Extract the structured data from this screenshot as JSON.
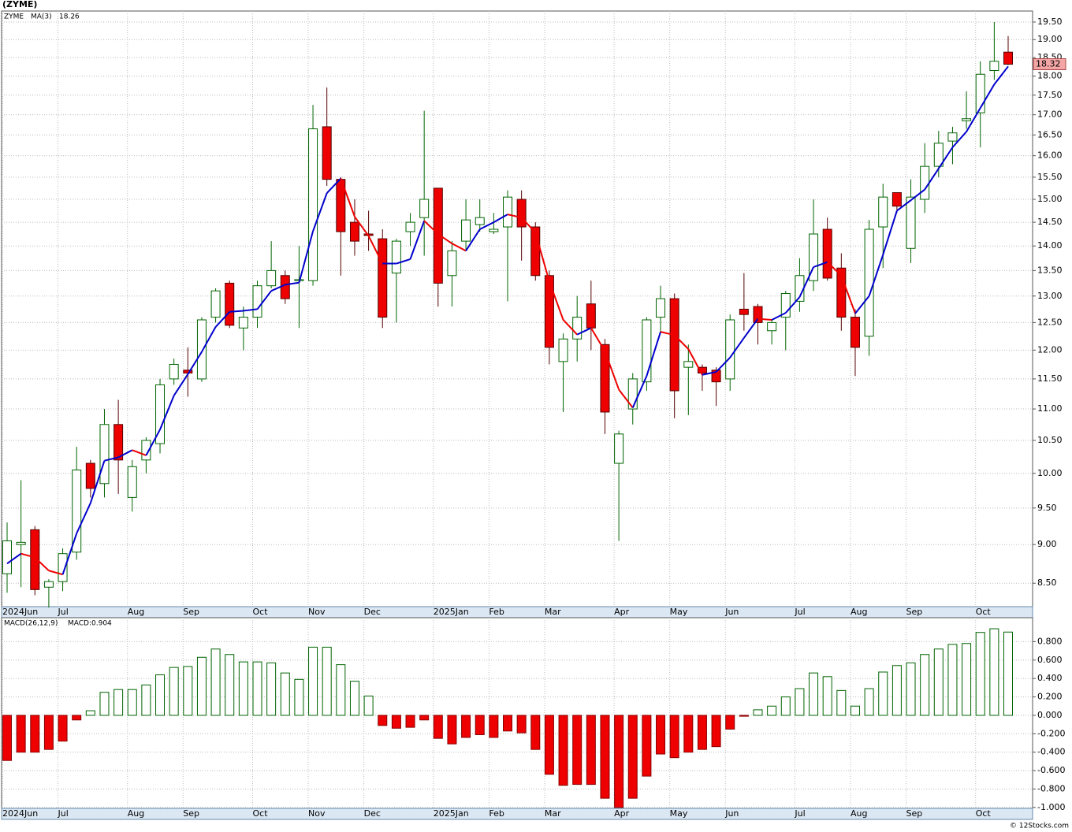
{
  "chart_data": [
    {
      "type": "candlestick",
      "title": "(ZYME)",
      "log_scale": true,
      "grid": true,
      "series_name": "ZYME",
      "series_name_color": "#008000",
      "up_fill": "#ffffff",
      "up_stroke": "#006400",
      "down_fill": "#ee0000",
      "down_stroke": "#550000",
      "last_price_label": "18.32",
      "last_price_fill": "#f4a6a6",
      "categories": [
        "2024Jun",
        null,
        null,
        null,
        "Jul",
        null,
        null,
        null,
        null,
        "Aug",
        null,
        null,
        null,
        "Sep",
        null,
        null,
        null,
        null,
        "Oct",
        null,
        null,
        null,
        "Nov",
        null,
        null,
        null,
        "Dec",
        null,
        null,
        null,
        null,
        "2025Jan",
        null,
        null,
        null,
        "Feb",
        null,
        null,
        null,
        "Mar",
        null,
        null,
        null,
        null,
        "Apr",
        null,
        null,
        null,
        "May",
        null,
        null,
        null,
        "Jun",
        null,
        null,
        null,
        null,
        "Jul",
        null,
        null,
        null,
        "Aug",
        null,
        null,
        null,
        "Sep",
        null,
        null,
        null,
        null,
        "Oct",
        null,
        null
      ],
      "open": [
        8.62,
        9.0,
        9.2,
        8.45,
        8.52,
        8.9,
        10.15,
        9.85,
        10.75,
        9.65,
        10.2,
        10.45,
        11.5,
        11.65,
        11.5,
        12.6,
        13.25,
        12.4,
        12.6,
        13.2,
        13.4,
        13.3,
        13.3,
        16.7,
        15.45,
        14.5,
        14.25,
        14.15,
        13.45,
        14.3,
        14.6,
        15.25,
        13.4,
        14.1,
        14.45,
        14.3,
        14.4,
        15.0,
        14.4,
        13.4,
        11.8,
        12.2,
        12.85,
        12.1,
        10.15,
        11.0,
        11.45,
        12.6,
        12.95,
        11.7,
        11.7,
        11.65,
        11.5,
        12.75,
        12.8,
        12.35,
        12.6,
        12.9,
        13.3,
        14.35,
        13.55,
        12.6,
        12.25,
        14.4,
        15.15,
        13.95,
        15.0,
        15.75,
        16.35,
        16.85,
        17.05,
        18.15,
        18.65
      ],
      "high": [
        9.3,
        9.9,
        9.25,
        8.55,
        8.95,
        10.4,
        10.2,
        11.0,
        11.15,
        10.2,
        10.55,
        11.5,
        11.85,
        12.05,
        12.6,
        13.15,
        13.3,
        12.8,
        13.3,
        14.1,
        13.5,
        14.0,
        17.25,
        17.7,
        15.5,
        15.0,
        14.75,
        14.35,
        14.15,
        14.7,
        17.1,
        15.25,
        14.1,
        15.0,
        15.0,
        14.7,
        15.2,
        15.2,
        14.5,
        13.5,
        12.3,
        13.0,
        13.3,
        12.2,
        10.65,
        11.6,
        12.6,
        13.2,
        13.05,
        12.1,
        11.75,
        11.7,
        12.65,
        13.45,
        12.85,
        12.55,
        13.1,
        13.75,
        15.0,
        14.6,
        13.85,
        12.75,
        14.55,
        15.35,
        15.15,
        15.45,
        16.3,
        16.6,
        16.7,
        17.6,
        18.4,
        19.5,
        19.1
      ],
      "low": [
        8.38,
        8.45,
        8.35,
        8.2,
        8.4,
        8.8,
        9.65,
        9.65,
        9.7,
        9.45,
        10.0,
        10.3,
        11.4,
        11.2,
        11.45,
        12.5,
        12.4,
        12.0,
        12.4,
        13.15,
        12.85,
        12.4,
        13.2,
        15.3,
        13.4,
        13.8,
        13.9,
        12.4,
        12.5,
        14.0,
        13.8,
        12.8,
        12.8,
        13.9,
        14.3,
        14.25,
        12.9,
        13.7,
        13.3,
        11.75,
        10.95,
        11.8,
        12.0,
        10.6,
        9.05,
        10.75,
        11.3,
        12.3,
        10.85,
        10.9,
        11.3,
        11.05,
        11.3,
        12.35,
        12.1,
        12.1,
        12.0,
        12.7,
        13.1,
        13.3,
        12.35,
        11.55,
        11.9,
        13.55,
        14.7,
        13.65,
        14.7,
        15.5,
        15.8,
        16.65,
        16.2,
        17.9,
        18.3
      ],
      "close": [
        9.05,
        9.03,
        8.42,
        8.52,
        8.88,
        10.05,
        9.78,
        10.75,
        10.2,
        10.1,
        10.5,
        11.4,
        11.75,
        11.6,
        12.55,
        13.1,
        12.45,
        12.6,
        13.2,
        13.5,
        12.95,
        13.32,
        16.65,
        15.45,
        14.3,
        14.1,
        14.22,
        12.6,
        14.1,
        14.5,
        15.0,
        13.25,
        13.9,
        14.55,
        14.6,
        14.35,
        15.05,
        14.4,
        13.4,
        12.05,
        12.2,
        12.6,
        12.4,
        10.95,
        10.6,
        11.5,
        12.55,
        12.95,
        11.3,
        11.8,
        11.6,
        11.45,
        12.55,
        12.65,
        12.5,
        12.5,
        13.05,
        13.4,
        14.25,
        13.35,
        12.6,
        12.05,
        14.35,
        15.05,
        14.85,
        15.05,
        15.75,
        16.3,
        16.55,
        16.9,
        18.05,
        18.4,
        18.32
      ],
      "ma": {
        "name": "MA(3)",
        "color": "#0000cc",
        "down_color": "#ee0000",
        "value_label": "18.26",
        "values": [
          8.75,
          8.88,
          8.83,
          8.66,
          8.61,
          9.15,
          9.57,
          10.19,
          10.24,
          10.35,
          10.27,
          10.67,
          11.22,
          11.58,
          11.97,
          12.42,
          12.7,
          12.72,
          12.75,
          13.1,
          13.22,
          13.26,
          14.31,
          15.14,
          15.47,
          14.62,
          14.21,
          13.64,
          13.64,
          13.73,
          14.53,
          14.25,
          14.05,
          13.9,
          14.35,
          14.5,
          14.67,
          14.6,
          14.28,
          13.28,
          12.55,
          12.28,
          12.4,
          11.98,
          11.32,
          11.02,
          11.55,
          12.33,
          12.27,
          12.02,
          11.57,
          11.62,
          11.87,
          12.22,
          12.57,
          12.55,
          12.68,
          12.98,
          13.57,
          13.67,
          13.4,
          12.67,
          13.0,
          13.82,
          14.75,
          14.98,
          15.22,
          15.7,
          16.2,
          16.58,
          17.17,
          17.78,
          18.26
        ]
      },
      "ylim": [
        8.21,
        19.82
      ],
      "yticks": [
        {
          "value": 8.5,
          "label": "8.50"
        },
        {
          "value": 9,
          "label": "9.00"
        },
        {
          "value": 9.5,
          "label": "9.50"
        },
        {
          "value": 10,
          "label": "10.00"
        },
        {
          "value": 10.5,
          "label": "10.50"
        },
        {
          "value": 11,
          "label": "11.00"
        },
        {
          "value": 11.5,
          "label": "11.50"
        },
        {
          "value": 12,
          "label": "12.00"
        },
        {
          "value": 12.5,
          "label": "12.50"
        },
        {
          "value": 13,
          "label": "13.00"
        },
        {
          "value": 13.5,
          "label": "13.50"
        },
        {
          "value": 14,
          "label": "14.00"
        },
        {
          "value": 14.5,
          "label": "14.50"
        },
        {
          "value": 15,
          "label": "15.00"
        },
        {
          "value": 15.5,
          "label": "15.50"
        },
        {
          "value": 16,
          "label": "16.00"
        },
        {
          "value": 16.5,
          "label": "16.50"
        },
        {
          "value": 17,
          "label": "17.00"
        },
        {
          "value": 17.5,
          "label": "17.50"
        },
        {
          "value": 18,
          "label": "18.00"
        },
        {
          "value": 18.5,
          "label": "18.50"
        },
        {
          "value": 19,
          "label": "19.00"
        },
        {
          "value": 19.5,
          "label": "19.50"
        }
      ]
    },
    {
      "type": "bar",
      "title": "MACD(26,12,9)",
      "value_label": "MACD:0.904",
      "label_color": "#0000cc",
      "grid": true,
      "pos_fill": "#ffffff",
      "pos_stroke": "#006400",
      "neg_fill": "#ee0000",
      "neg_stroke": "#880000",
      "values": [
        -0.49,
        -0.4,
        -0.4,
        -0.37,
        -0.28,
        -0.05,
        0.05,
        0.25,
        0.28,
        0.28,
        0.33,
        0.44,
        0.52,
        0.53,
        0.63,
        0.72,
        0.66,
        0.58,
        0.58,
        0.57,
        0.46,
        0.39,
        0.74,
        0.74,
        0.55,
        0.37,
        0.21,
        -0.11,
        -0.14,
        -0.13,
        -0.05,
        -0.25,
        -0.31,
        -0.24,
        -0.21,
        -0.24,
        -0.17,
        -0.19,
        -0.37,
        -0.64,
        -0.76,
        -0.75,
        -0.75,
        -0.9,
        -1.0,
        -0.9,
        -0.66,
        -0.42,
        -0.46,
        -0.4,
        -0.37,
        -0.34,
        -0.15,
        -0.01,
        0.06,
        0.1,
        0.2,
        0.29,
        0.46,
        0.42,
        0.27,
        0.1,
        0.29,
        0.47,
        0.54,
        0.57,
        0.66,
        0.72,
        0.77,
        0.78,
        0.9,
        0.94,
        0.904
      ],
      "ylim": [
        -1.01,
        1.06
      ],
      "yticks": [
        {
          "value": -1,
          "label": "-1.000"
        },
        {
          "value": -0.8,
          "label": "-0.800"
        },
        {
          "value": -0.6,
          "label": "-0.600"
        },
        {
          "value": -0.4,
          "label": "-0.400"
        },
        {
          "value": -0.2,
          "label": "-0.200"
        },
        {
          "value": 0,
          "label": "0.000"
        },
        {
          "value": 0.2,
          "label": "0.200"
        },
        {
          "value": 0.4,
          "label": "0.400"
        },
        {
          "value": 0.6,
          "label": "0.600"
        },
        {
          "value": 0.8,
          "label": "0.800"
        }
      ]
    }
  ],
  "footer": "© 12Stocks.com"
}
